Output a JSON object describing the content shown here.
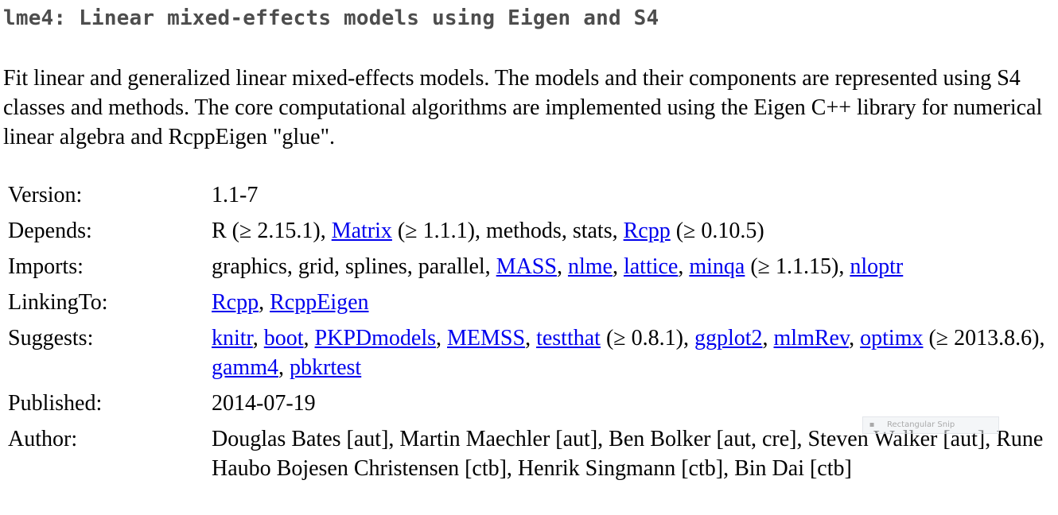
{
  "title": "lme4: Linear mixed-effects models using Eigen and S4",
  "description": "Fit linear and generalized linear mixed-effects models. The models and their components are represented using S4 classes and methods. The core computational algorithms are implemented using the Eigen C++ library for numerical linear algebra and RcppEigen \"glue\".",
  "meta": {
    "version": {
      "label": "Version:",
      "value": "1.1-7"
    },
    "depends": {
      "label": "Depends:",
      "t0": "R (≥ 2.15.1), ",
      "l0": "Matrix",
      "t1": " (≥ 1.1.1), methods, stats, ",
      "l1": "Rcpp",
      "t2": " (≥ 0.10.5)"
    },
    "imports": {
      "label": "Imports:",
      "t0": "graphics, grid, splines, parallel, ",
      "l0": "MASS",
      "s1": ", ",
      "l1": "nlme",
      "s2": ", ",
      "l2": "lattice",
      "s3": ", ",
      "l3": "minqa",
      "t4": " (≥ 1.1.15), ",
      "l4": "nloptr"
    },
    "linkingto": {
      "label": "LinkingTo:",
      "l0": "Rcpp",
      "s1": ", ",
      "l1": "RcppEigen"
    },
    "suggests": {
      "label": "Suggests:",
      "l0": "knitr",
      "s1": ", ",
      "l1": "boot",
      "s2": ", ",
      "l2": "PKPDmodels",
      "s3": ", ",
      "l3": "MEMSS",
      "s4": ", ",
      "l4": "testthat",
      "t5": " (≥ 0.8.1), ",
      "l5": "ggplot2",
      "s6": ", ",
      "l6": "mlmRev",
      "s7": ", ",
      "l7": "optimx",
      "t8": " (≥ 2013.8.6), ",
      "l8": "gamm4",
      "s9": ", ",
      "l9": "pbkrtest"
    },
    "published": {
      "label": "Published:",
      "value": "2014-07-19"
    },
    "author": {
      "label": "Author:",
      "value": "Douglas Bates [aut], Martin Maechler [aut], Ben Bolker [aut, cre], Steven Walker [aut], Rune Haubo Bojesen Christensen [ctb], Henrik Singmann [ctb], Bin Dai [ctb]"
    }
  },
  "overlay": {
    "snip_label": "Rectangular Snip",
    "snip_icon": "▪"
  },
  "colors": {
    "title": "#4d4d4d",
    "link": "#0000ee",
    "text": "#000000"
  }
}
